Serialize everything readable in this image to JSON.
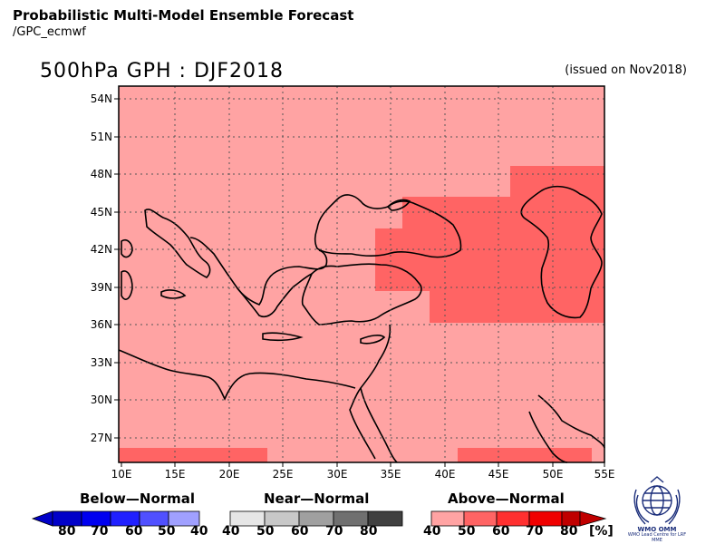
{
  "header": {
    "title": "Probabilistic Multi-Model Ensemble Forecast",
    "subtitle": "/GPC_ecmwf",
    "map_title": "500hPa GPH : DJF2018",
    "issued": "(issued on Nov2018)"
  },
  "map": {
    "lon_ticks": [
      "10E",
      "15E",
      "20E",
      "25E",
      "30E",
      "35E",
      "40E",
      "45E",
      "50E",
      "55E"
    ],
    "lat_ticks": [
      "54N",
      "51N",
      "48N",
      "45N",
      "42N",
      "39N",
      "36N",
      "33N",
      "30N",
      "27N"
    ],
    "background_category": "Above-Normal 40-50%",
    "colors": {
      "above_40": "#ffa3a3",
      "above_50": "#ff6464",
      "coast": "#000000"
    }
  },
  "legend": {
    "below": {
      "title": "Below—Normal",
      "labels": [
        "80",
        "70",
        "60",
        "50",
        "40"
      ],
      "colors": [
        "#0000c8",
        "#0000f0",
        "#2020ff",
        "#5050ff",
        "#a0a0ff"
      ]
    },
    "near": {
      "title": "Near—Normal",
      "labels": [
        "40",
        "50",
        "60",
        "70",
        "80"
      ],
      "colors": [
        "#e6e6e6",
        "#c8c8c8",
        "#a0a0a0",
        "#707070",
        "#404040"
      ]
    },
    "above": {
      "title": "Above—Normal",
      "labels": [
        "40",
        "50",
        "60",
        "70",
        "80"
      ],
      "unit": "[%]",
      "colors": [
        "#ffa3a3",
        "#ff6464",
        "#ff3030",
        "#f00000",
        "#c00000"
      ]
    }
  },
  "logo": {
    "caption": "WMO Lead Centre for LRF MME"
  }
}
